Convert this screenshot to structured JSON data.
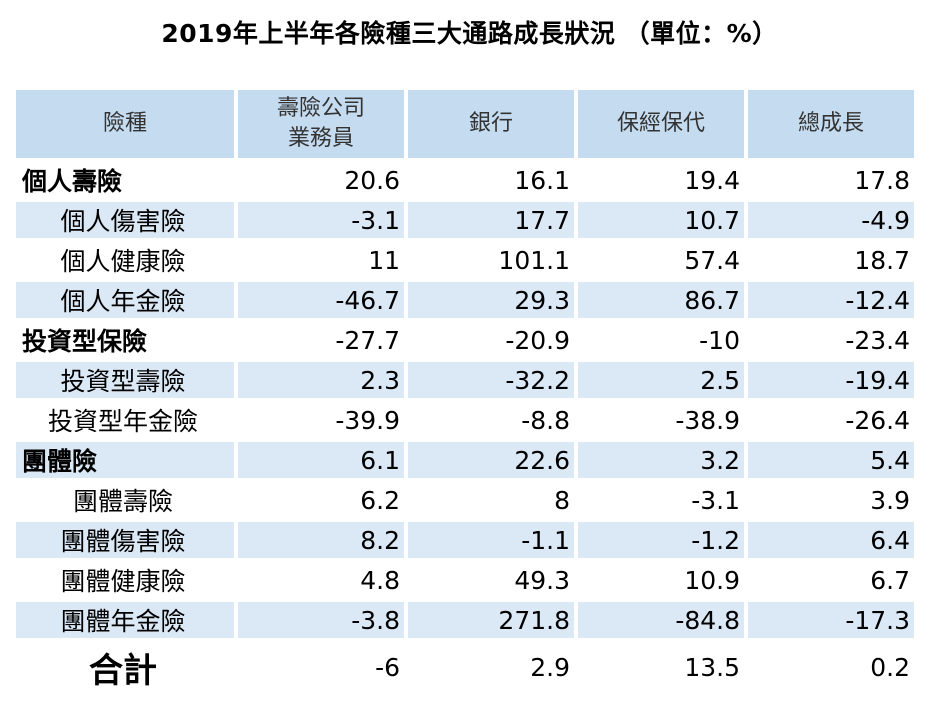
{
  "chart_data": {
    "type": "table",
    "title": "2019年上半年各險種三大通路成長狀況 （單位：%）",
    "columns": [
      "險種",
      "壽險公司業務員",
      "銀行",
      "保經保代",
      "總成長"
    ],
    "rows": [
      {
        "label": "個人壽險",
        "level": "category",
        "values": [
          "20.6",
          "16.1",
          "19.4",
          "17.8"
        ]
      },
      {
        "label": "個人傷害險",
        "level": "sub",
        "values": [
          "-3.1",
          "17.7",
          "10.7",
          "-4.9"
        ]
      },
      {
        "label": "個人健康險",
        "level": "sub",
        "values": [
          "11",
          "101.1",
          "57.4",
          "18.7"
        ]
      },
      {
        "label": "個人年金險",
        "level": "sub",
        "values": [
          "-46.7",
          "29.3",
          "86.7",
          "-12.4"
        ]
      },
      {
        "label": "投資型保險",
        "level": "category",
        "values": [
          "-27.7",
          "-20.9",
          "-10",
          "-23.4"
        ]
      },
      {
        "label": "投資型壽險",
        "level": "sub",
        "values": [
          "2.3",
          "-32.2",
          "2.5",
          "-19.4"
        ]
      },
      {
        "label": "投資型年金險",
        "level": "sub",
        "values": [
          "-39.9",
          "-8.8",
          "-38.9",
          "-26.4"
        ]
      },
      {
        "label": "團體險",
        "level": "category",
        "values": [
          "6.1",
          "22.6",
          "3.2",
          "5.4"
        ]
      },
      {
        "label": "團體壽險",
        "level": "sub",
        "values": [
          "6.2",
          "8",
          "-3.1",
          "3.9"
        ]
      },
      {
        "label": "團體傷害險",
        "level": "sub",
        "values": [
          "8.2",
          "-1.1",
          "-1.2",
          "6.4"
        ]
      },
      {
        "label": "團體健康險",
        "level": "sub",
        "values": [
          "4.8",
          "49.3",
          "10.9",
          "6.7"
        ]
      },
      {
        "label": "團體年金險",
        "level": "sub",
        "values": [
          "-3.8",
          "271.8",
          "-84.8",
          "-17.3"
        ]
      },
      {
        "label": "合計",
        "level": "total",
        "values": [
          "-6",
          "2.9",
          "13.5",
          "0.2"
        ]
      }
    ]
  },
  "colors": {
    "header_bg": "#c5dcf0",
    "stripe_bg": "#dbe8f5"
  }
}
